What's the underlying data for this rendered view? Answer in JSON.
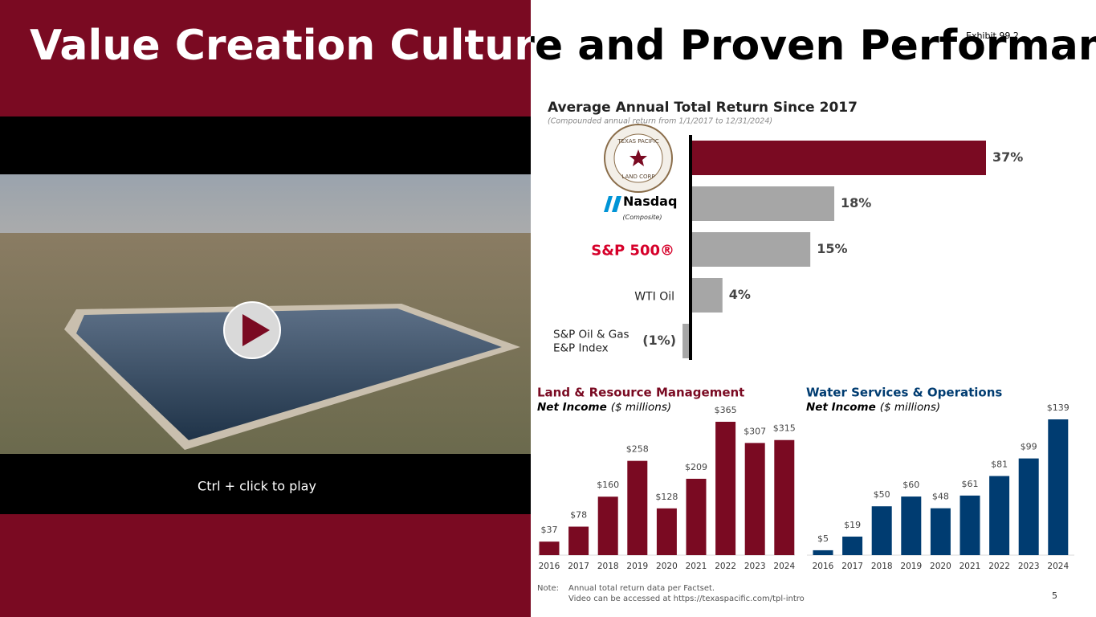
{
  "title": "Value Creation Culture and Proven Performance",
  "exhibit": "Exhibit 99.2",
  "video": {
    "caption": "Ctrl + click to play"
  },
  "logo": {
    "top": "TEXAS PACIFIC",
    "bottom": "LAND CORP"
  },
  "note": {
    "label": "Note:",
    "lines": [
      "Annual total return data per Factset.",
      "Video can be accessed at https://texaspacific.com/tpl-intro"
    ]
  },
  "page_number": "5",
  "chart_data": [
    {
      "type": "hbar",
      "title": "Average Annual Total Return Since 2017",
      "subtitle": "(Compounded annual return from 1/1/2017 to 12/31/2024)",
      "categories": [
        null,
        "Nasdaq",
        "S&P 500®",
        "WTI Oil",
        "S&P Oil & Gas E&P Index"
      ],
      "category_subtitles": [
        null,
        "(Composite)",
        null,
        null,
        null
      ],
      "values": [
        37,
        18,
        15,
        4,
        -1
      ],
      "value_labels": [
        "37%",
        "18%",
        "15%",
        "4%",
        "(1%)"
      ],
      "colors": [
        "#7a0a22",
        "#a6a6a6",
        "#a6a6a6",
        "#a6a6a6",
        "#a6a6a6"
      ]
    },
    {
      "type": "bar",
      "title": "Land & Resource Management",
      "subtitle": "Net Income",
      "unit": "($ millions)",
      "categories": [
        "2016",
        "2017",
        "2018",
        "2019",
        "2020",
        "2021",
        "2022",
        "2023",
        "2024"
      ],
      "values": [
        37,
        78,
        160,
        258,
        128,
        209,
        365,
        307,
        315
      ],
      "value_labels": [
        "$37",
        "$78",
        "$160",
        "$258",
        "$128",
        "$209",
        "$365",
        "$307",
        "$315"
      ],
      "color": "#7a0a22"
    },
    {
      "type": "bar",
      "title": "Water Services & Operations",
      "subtitle": "Net Income",
      "unit": "($ millions)",
      "categories": [
        "2016",
        "2017",
        "2018",
        "2019",
        "2020",
        "2021",
        "2022",
        "2023",
        "2024"
      ],
      "values": [
        5,
        19,
        50,
        60,
        48,
        61,
        81,
        99,
        139
      ],
      "value_labels": [
        "$5",
        "$19",
        "$50",
        "$60",
        "$48",
        "$61",
        "$81",
        "$99",
        "$139"
      ],
      "color": "#003c71"
    }
  ]
}
